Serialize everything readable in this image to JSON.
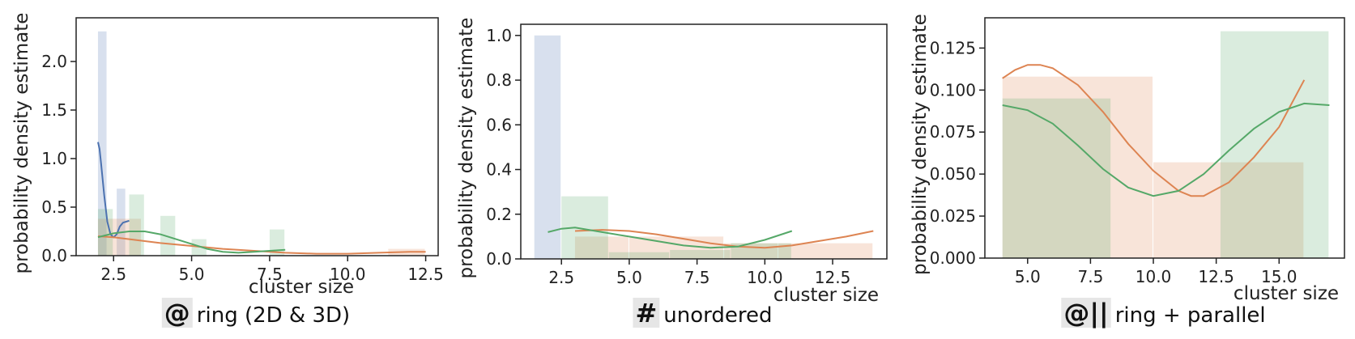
{
  "chart_data": [
    {
      "type": "bar",
      "xlabel": "cluster size",
      "ylabel": "probability density estimate",
      "xlim": [
        1.3,
        12.9
      ],
      "ylim": [
        0,
        2.45
      ],
      "xticks": [
        "2.5",
        "5.0",
        "7.5",
        "10.0",
        "12.5"
      ],
      "yticks": [
        "0.0",
        "0.5",
        "1.0",
        "1.5",
        "2.0"
      ],
      "caption": {
        "symbol": "@",
        "text": "ring (2D & 3D)"
      },
      "colors": {
        "blue": "#4c72b0",
        "orange": "#dd8452",
        "green": "#55a868"
      },
      "series": [
        {
          "color": "blue",
          "bins": [
            [
              2.0,
              2.3,
              2.31
            ],
            [
              2.3,
              2.6,
              0.0
            ],
            [
              2.6,
              2.9,
              0.69
            ],
            [
              2.9,
              3.0,
              0.0
            ]
          ],
          "kde": [
            [
              2.0,
              1.17
            ],
            [
              2.05,
              1.1
            ],
            [
              2.1,
              0.95
            ],
            [
              2.2,
              0.62
            ],
            [
              2.3,
              0.35
            ],
            [
              2.4,
              0.22
            ],
            [
              2.5,
              0.19
            ],
            [
              2.6,
              0.22
            ],
            [
              2.7,
              0.3
            ],
            [
              2.8,
              0.34
            ],
            [
              2.9,
              0.35
            ],
            [
              3.0,
              0.36
            ]
          ]
        },
        {
          "color": "orange",
          "bins": [
            [
              2.0,
              3.4,
              0.38
            ],
            [
              3.4,
              11.3,
              0.0
            ],
            [
              11.3,
              12.5,
              0.07
            ]
          ],
          "kde": [
            [
              2.0,
              0.2
            ],
            [
              2.5,
              0.19
            ],
            [
              3.0,
              0.17
            ],
            [
              4.0,
              0.13
            ],
            [
              5.0,
              0.1
            ],
            [
              6.0,
              0.07
            ],
            [
              7.0,
              0.05
            ],
            [
              8.0,
              0.03
            ],
            [
              9.0,
              0.02
            ],
            [
              10.0,
              0.02
            ],
            [
              11.0,
              0.03
            ],
            [
              12.0,
              0.04
            ],
            [
              12.5,
              0.04
            ]
          ]
        },
        {
          "color": "green",
          "bins": [
            [
              2.0,
              2.5,
              0.48
            ],
            [
              2.5,
              3.0,
              0.0
            ],
            [
              3.0,
              3.5,
              0.63
            ],
            [
              3.5,
              4.0,
              0.0
            ],
            [
              4.0,
              4.5,
              0.41
            ],
            [
              4.5,
              5.0,
              0.0
            ],
            [
              5.0,
              5.5,
              0.17
            ],
            [
              5.5,
              7.5,
              0.0
            ],
            [
              7.5,
              8.0,
              0.27
            ]
          ],
          "kde": [
            [
              2.0,
              0.19
            ],
            [
              2.5,
              0.23
            ],
            [
              3.0,
              0.25
            ],
            [
              3.5,
              0.25
            ],
            [
              4.0,
              0.22
            ],
            [
              4.5,
              0.17
            ],
            [
              5.0,
              0.12
            ],
            [
              5.5,
              0.07
            ],
            [
              6.0,
              0.04
            ],
            [
              6.5,
              0.03
            ],
            [
              7.0,
              0.04
            ],
            [
              7.5,
              0.05
            ],
            [
              8.0,
              0.06
            ]
          ]
        }
      ]
    },
    {
      "type": "bar",
      "xlabel": "cluster size",
      "ylabel": "probability density estimate",
      "xlim": [
        1.0,
        14.5
      ],
      "ylim": [
        0,
        1.05
      ],
      "xticks": [
        "2.5",
        "5.0",
        "7.5",
        "10.0",
        "12.5"
      ],
      "yticks": [
        "0.0",
        "0.2",
        "0.4",
        "0.6",
        "0.8",
        "1.0"
      ],
      "caption": {
        "symbol": "#",
        "text": "unordered"
      },
      "colors": {
        "blue": "#4c72b0",
        "orange": "#dd8452",
        "green": "#55a868"
      },
      "series": [
        {
          "color": "blue",
          "bins": [
            [
              1.5,
              2.5,
              1.0
            ]
          ],
          "kde": []
        },
        {
          "color": "orange",
          "bins": [
            [
              3.0,
              5.0,
              0.1
            ],
            [
              5.0,
              8.5,
              0.1
            ],
            [
              8.5,
              10.5,
              0.07
            ],
            [
              10.5,
              14.0,
              0.07
            ]
          ],
          "kde": [
            [
              3.0,
              0.125
            ],
            [
              4.0,
              0.13
            ],
            [
              5.0,
              0.125
            ],
            [
              6.0,
              0.11
            ],
            [
              7.0,
              0.09
            ],
            [
              8.0,
              0.07
            ],
            [
              9.0,
              0.055
            ],
            [
              10.0,
              0.05
            ],
            [
              11.0,
              0.06
            ],
            [
              12.0,
              0.08
            ],
            [
              13.0,
              0.1
            ],
            [
              14.0,
              0.125
            ]
          ]
        },
        {
          "color": "green",
          "bins": [
            [
              2.5,
              4.25,
              0.28
            ],
            [
              4.25,
              6.5,
              0.03
            ],
            [
              6.5,
              8.75,
              0.04
            ],
            [
              8.75,
              11.0,
              0.07
            ]
          ],
          "kde": [
            [
              2.0,
              0.12
            ],
            [
              2.5,
              0.135
            ],
            [
              3.0,
              0.14
            ],
            [
              4.0,
              0.12
            ],
            [
              5.0,
              0.1
            ],
            [
              6.0,
              0.08
            ],
            [
              7.0,
              0.06
            ],
            [
              8.0,
              0.05
            ],
            [
              9.0,
              0.055
            ],
            [
              10.0,
              0.085
            ],
            [
              11.0,
              0.125
            ]
          ]
        }
      ]
    },
    {
      "type": "bar",
      "xlabel": "cluster size",
      "ylabel": "probability density estimate",
      "xlim": [
        3.3,
        17.6
      ],
      "ylim": [
        0,
        0.143
      ],
      "xticks": [
        "5.0",
        "7.5",
        "10.0",
        "12.5",
        "15.0"
      ],
      "yticks": [
        "0.000",
        "0.025",
        "0.050",
        "0.075",
        "0.100",
        "0.125"
      ],
      "caption": {
        "symbol": "@||",
        "text": "ring + parallel"
      },
      "colors": {
        "blue": "#4c72b0",
        "orange": "#dd8452",
        "green": "#55a868"
      },
      "series": [
        {
          "color": "orange",
          "bins": [
            [
              4.0,
              10.0,
              0.108
            ],
            [
              10.0,
              16.0,
              0.057
            ]
          ],
          "kde": [
            [
              4.0,
              0.107
            ],
            [
              4.5,
              0.112
            ],
            [
              5.0,
              0.115
            ],
            [
              5.5,
              0.115
            ],
            [
              6.0,
              0.113
            ],
            [
              7.0,
              0.103
            ],
            [
              8.0,
              0.087
            ],
            [
              9.0,
              0.068
            ],
            [
              10.0,
              0.052
            ],
            [
              11.0,
              0.04
            ],
            [
              11.5,
              0.037
            ],
            [
              12.0,
              0.037
            ],
            [
              13.0,
              0.045
            ],
            [
              14.0,
              0.06
            ],
            [
              15.0,
              0.078
            ],
            [
              16.0,
              0.106
            ]
          ]
        },
        {
          "color": "green",
          "bins": [
            [
              4.0,
              8.33,
              0.095
            ],
            [
              8.33,
              12.67,
              0.0
            ],
            [
              12.67,
              17.0,
              0.135
            ]
          ],
          "kde": [
            [
              4.0,
              0.091
            ],
            [
              5.0,
              0.088
            ],
            [
              6.0,
              0.08
            ],
            [
              7.0,
              0.067
            ],
            [
              8.0,
              0.053
            ],
            [
              9.0,
              0.042
            ],
            [
              10.0,
              0.037
            ],
            [
              11.0,
              0.04
            ],
            [
              12.0,
              0.05
            ],
            [
              13.0,
              0.064
            ],
            [
              14.0,
              0.077
            ],
            [
              15.0,
              0.087
            ],
            [
              16.0,
              0.092
            ],
            [
              17.0,
              0.091
            ]
          ]
        }
      ]
    }
  ]
}
